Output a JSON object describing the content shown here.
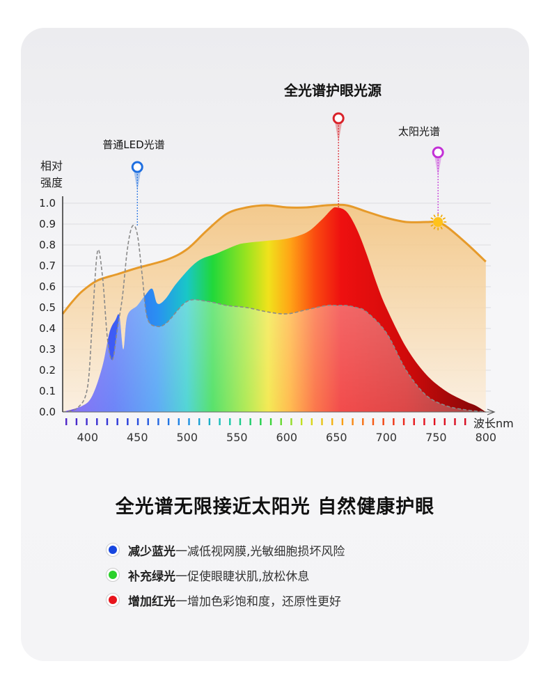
{
  "colors": {
    "sun_curve": "#e69a2a",
    "led_marker": "#1f6fe0",
    "full_marker": "#d9222a",
    "sun_marker": "#c230d6"
  },
  "chart_data": {
    "type": "area",
    "title": "全光谱护眼光源",
    "ylabel": "相对强度",
    "xlabel": "波长nm",
    "xlim": [
      375,
      805
    ],
    "ylim": [
      0,
      1.0
    ],
    "xticks": [
      400,
      450,
      500,
      550,
      600,
      650,
      700,
      750,
      800
    ],
    "yticks": [
      "0.0",
      "0.1",
      "0.2",
      "0.3",
      "0.4",
      "0.5",
      "0.6",
      "0.7",
      "0.8",
      "0.9",
      "1.0"
    ],
    "series": [
      {
        "name": "普通LED光谱",
        "x": [
          375,
          390,
          400,
          405,
          410,
          415,
          420,
          425,
          430,
          435,
          440,
          445,
          450,
          455,
          460,
          470,
          480,
          500,
          520,
          540,
          560,
          580,
          600,
          620,
          640,
          650,
          660,
          670,
          680,
          700,
          720,
          740,
          760,
          780,
          800
        ],
        "y": [
          0,
          0.02,
          0.12,
          0.45,
          0.77,
          0.65,
          0.35,
          0.25,
          0.4,
          0.55,
          0.78,
          0.89,
          0.85,
          0.65,
          0.45,
          0.41,
          0.43,
          0.53,
          0.53,
          0.51,
          0.5,
          0.48,
          0.47,
          0.49,
          0.51,
          0.51,
          0.51,
          0.5,
          0.48,
          0.38,
          0.2,
          0.08,
          0.03,
          0.01,
          0
        ]
      },
      {
        "name": "全光谱",
        "x": [
          375,
          395,
          405,
          415,
          422,
          428,
          432,
          436,
          440,
          450,
          458,
          465,
          470,
          478,
          490,
          510,
          530,
          550,
          560,
          580,
          600,
          620,
          635,
          645,
          650,
          660,
          670,
          680,
          690,
          700,
          720,
          740,
          760,
          780,
          790,
          800
        ],
        "y": [
          0,
          0.03,
          0.08,
          0.22,
          0.38,
          0.44,
          0.46,
          0.3,
          0.46,
          0.51,
          0.56,
          0.59,
          0.52,
          0.54,
          0.62,
          0.72,
          0.76,
          0.8,
          0.81,
          0.82,
          0.83,
          0.86,
          0.92,
          0.97,
          0.98,
          0.96,
          0.88,
          0.76,
          0.62,
          0.5,
          0.31,
          0.18,
          0.1,
          0.05,
          0.03,
          0
        ]
      },
      {
        "name": "太阳光谱",
        "x": [
          375,
          385,
          395,
          410,
          430,
          450,
          480,
          500,
          520,
          540,
          560,
          580,
          600,
          620,
          640,
          660,
          680,
          700,
          720,
          740,
          750,
          760,
          780,
          800
        ],
        "y": [
          0.47,
          0.53,
          0.58,
          0.63,
          0.66,
          0.69,
          0.73,
          0.78,
          0.87,
          0.95,
          0.98,
          0.99,
          0.98,
          0.98,
          0.99,
          0.99,
          0.96,
          0.93,
          0.91,
          0.91,
          0.91,
          0.89,
          0.81,
          0.72
        ]
      }
    ],
    "markers": [
      {
        "label": "普通LED光谱",
        "x": 450,
        "y": 0.89
      },
      {
        "label": "全光谱护眼光源",
        "x": 652,
        "y": 0.98
      },
      {
        "label": "太阳光谱",
        "x": 752,
        "y": 0.91
      }
    ]
  },
  "headline": "全光谱无限接近太阳光 自然健康护眼",
  "bullets": [
    {
      "bold": "减少蓝光",
      "text": "一减低视网膜,光敏细胞损坏风险",
      "color": "#1746e0"
    },
    {
      "bold": "补充绿光",
      "text": "一促使眼睫状肌,放松休息",
      "color": "#2bd12b"
    },
    {
      "bold": "增加红光",
      "text": "一增加色彩饱和度，还原性更好",
      "color": "#e8141c"
    }
  ]
}
